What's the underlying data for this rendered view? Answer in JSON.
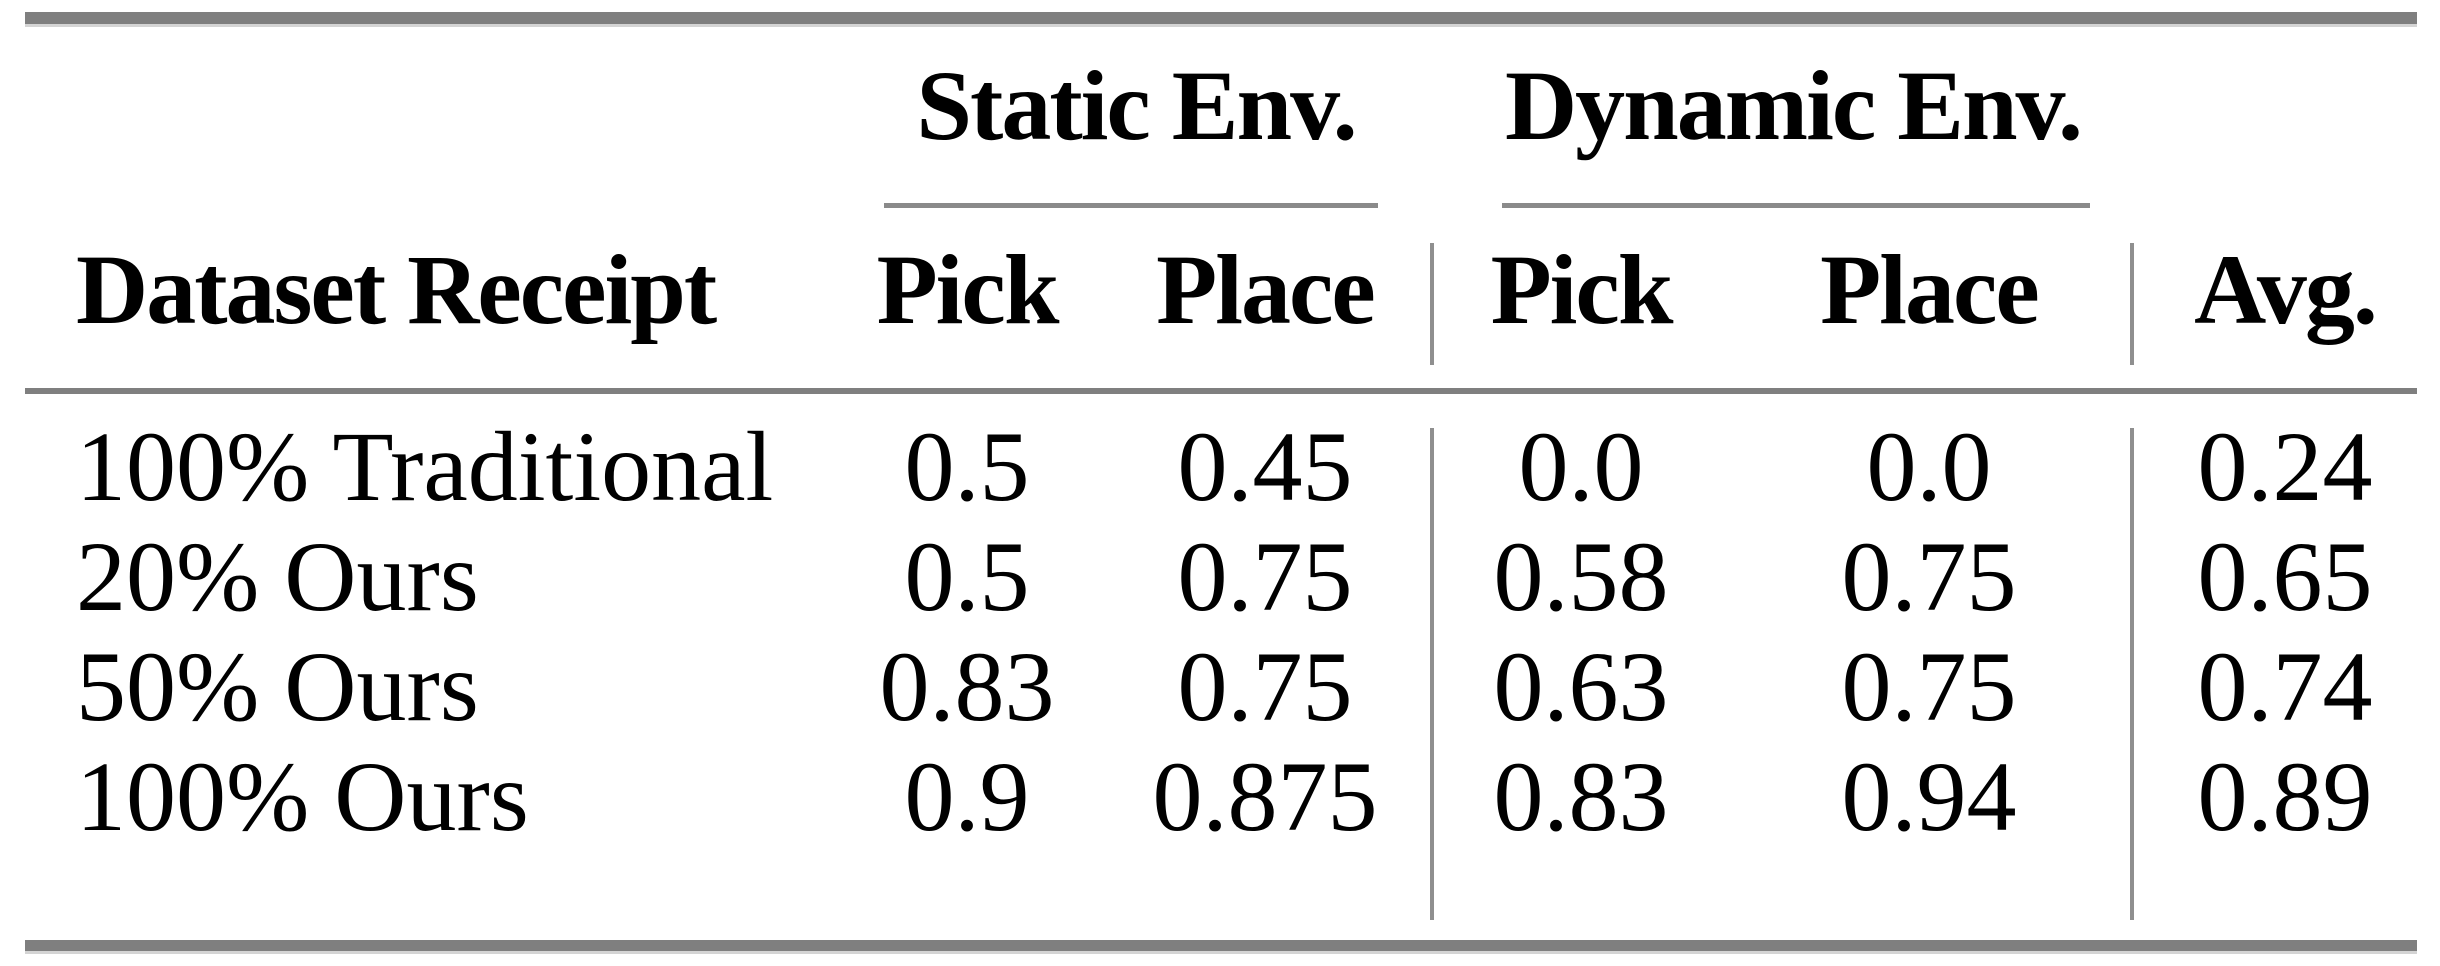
{
  "table": {
    "caption_visible": false,
    "column_groups": [
      {
        "id": "static",
        "label": "Static Env."
      },
      {
        "id": "dynamic",
        "label": "Dynamic Env."
      }
    ],
    "headers": {
      "dataset": "Dataset Receipt",
      "static_pick": "Pick",
      "static_place": "Place",
      "dynamic_pick": "Pick",
      "dynamic_place": "Place",
      "avg": "Avg."
    },
    "rows": [
      {
        "label": "100% Traditional",
        "static_pick": "0.5",
        "static_place": "0.45",
        "dynamic_pick": "0.0",
        "dynamic_place": "0.0",
        "avg": "0.24"
      },
      {
        "label": "20% Ours",
        "static_pick": "0.5",
        "static_place": "0.75",
        "dynamic_pick": "0.58",
        "dynamic_place": "0.75",
        "avg": "0.65"
      },
      {
        "label": "50% Ours",
        "static_pick": "0.83",
        "static_place": "0.75",
        "dynamic_pick": "0.63",
        "dynamic_place": "0.75",
        "avg": "0.74"
      },
      {
        "label": "100% Ours",
        "static_pick": "0.9",
        "static_place": "0.875",
        "dynamic_pick": "0.83",
        "dynamic_place": "0.94",
        "avg": "0.89"
      }
    ],
    "colors": {
      "rule_gray": "#7f7f7f",
      "rule_light_gray": "#d4d4d4",
      "separator_gray": "#8f8f8f",
      "text": "#000000",
      "background": "#ffffff"
    }
  }
}
